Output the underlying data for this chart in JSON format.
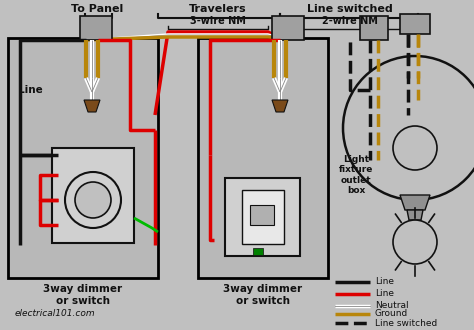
{
  "bg_color": "#c0c0c0",
  "box_face": "#b8b8b8",
  "black": "#111111",
  "red": "#dd0000",
  "white": "#ffffff",
  "gold": "#b8860b",
  "green": "#00bb00",
  "brown": "#7a4a1a",
  "legend": [
    {
      "color": "#111111",
      "label": "Line",
      "style": "solid"
    },
    {
      "color": "#dd0000",
      "label": "Line",
      "style": "solid"
    },
    {
      "color": "#ffffff",
      "label": "Neutral",
      "style": "solid"
    },
    {
      "color": "#b8860b",
      "label": "Ground",
      "style": "solid"
    },
    {
      "color": "#111111",
      "label": "Line switched",
      "style": "dashed"
    }
  ],
  "label_to_panel": "To Panel",
  "label_travelers": "Travelers",
  "label_line_switched": "Line switched",
  "label_3wire": "3-wire NM",
  "label_2wire": "2-wire NM",
  "label_line": "Line",
  "label_switch1": "3way dimmer\nor switch",
  "label_switch2": "3way dimmer\nor switch",
  "label_light": "Light\nfixture\noutlet\nbox",
  "website": "electrical101.com"
}
